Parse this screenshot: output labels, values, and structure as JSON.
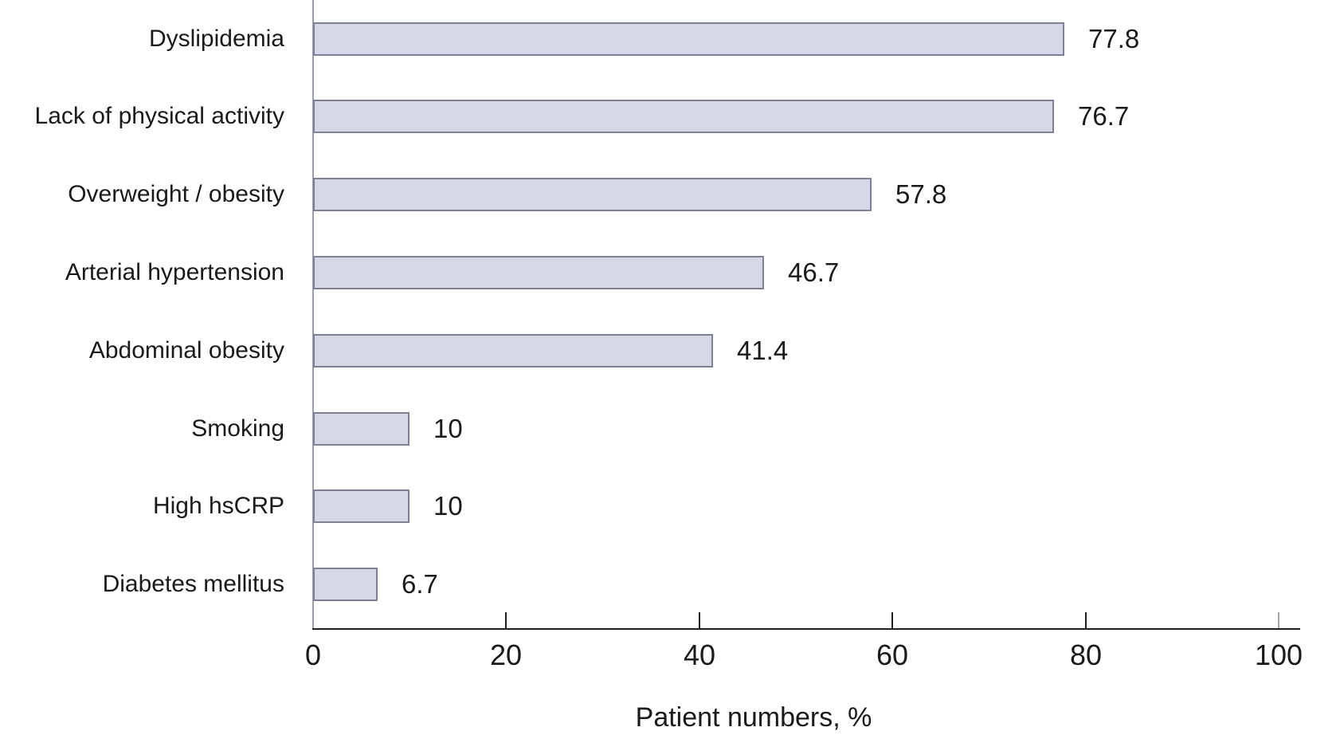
{
  "chart_data": {
    "type": "bar",
    "orientation": "horizontal",
    "title": "",
    "xlabel": "Patient numbers, %",
    "ylabel": "",
    "categories": [
      "Dyslipidemia",
      "Lack of physical activity",
      "Overweight / obesity",
      "Arterial hypertension",
      "Abdominal obesity",
      "Smoking",
      "High hsCRP",
      "Diabetes mellitus"
    ],
    "values": [
      77.8,
      76.7,
      57.8,
      46.7,
      41.4,
      10,
      10,
      6.7
    ],
    "value_labels": [
      "77.8",
      "76.7",
      "57.8",
      "46.7",
      "41.4",
      "10",
      "10",
      "6.7"
    ],
    "xlim": [
      0,
      100
    ],
    "x_ticks": [
      0,
      20,
      40,
      60,
      80,
      100
    ],
    "grid": false,
    "legend": "none",
    "data_labels_position": "outside-end",
    "colors": {
      "bar_fill": "#d6d8e7",
      "bar_border": "#7e8193",
      "x_axis": "#1f1f1f",
      "y_axis": "#9b9ea8",
      "muted_last_tick": "#a6a6a6",
      "text": "#1a1a1a"
    }
  }
}
